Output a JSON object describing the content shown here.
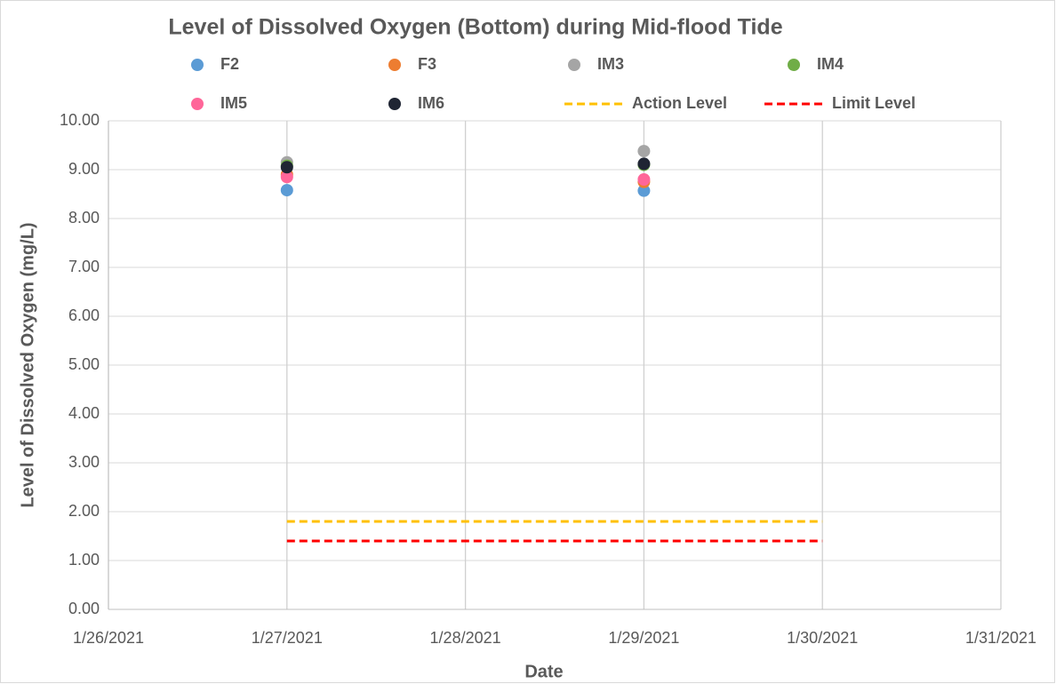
{
  "chart_data": {
    "type": "scatter",
    "title": "Level of Dissolved Oxygen (Bottom) during Mid-flood Tide",
    "x_label": "Date",
    "y_label": "Level of Dissolved Oxygen (mg/L)",
    "xlim": [
      "1/26/2021",
      "1/31/2021"
    ],
    "xticks": [
      "1/26/2021",
      "1/27/2021",
      "1/28/2021",
      "1/29/2021",
      "1/30/2021",
      "1/31/2021"
    ],
    "ylim": [
      0,
      10
    ],
    "yticks": [
      {
        "value": 0,
        "label": "0.00"
      },
      {
        "value": 1,
        "label": "1.00"
      },
      {
        "value": 2,
        "label": "2.00"
      },
      {
        "value": 3,
        "label": "3.00"
      },
      {
        "value": 4,
        "label": "4.00"
      },
      {
        "value": 5,
        "label": "5.00"
      },
      {
        "value": 6,
        "label": "6.00"
      },
      {
        "value": 7,
        "label": "7.00"
      },
      {
        "value": 8,
        "label": "8.00"
      },
      {
        "value": 9,
        "label": "9.00"
      },
      {
        "value": 10,
        "label": "10.00"
      }
    ],
    "grid": true,
    "series": [
      {
        "name": "F2",
        "color": "#5b9bd5",
        "marker": "circle",
        "x": [
          "1/27/2021",
          "1/29/2021"
        ],
        "values": [
          8.58,
          8.57
        ]
      },
      {
        "name": "F3",
        "color": "#ed7d31",
        "marker": "circle",
        "x": [
          "1/27/2021",
          "1/29/2021"
        ],
        "values": [
          8.9,
          8.75
        ]
      },
      {
        "name": "IM3",
        "color": "#a5a5a5",
        "marker": "circle",
        "x": [
          "1/27/2021",
          "1/29/2021"
        ],
        "values": [
          9.15,
          9.38
        ]
      },
      {
        "name": "IM4",
        "color": "#70ad47",
        "marker": "circle",
        "x": [
          "1/27/2021",
          "1/29/2021"
        ],
        "values": [
          9.08,
          9.1
        ]
      },
      {
        "name": "IM5",
        "color": "#ff6699",
        "marker": "circle",
        "x": [
          "1/27/2021",
          "1/29/2021"
        ],
        "values": [
          8.85,
          8.8
        ]
      },
      {
        "name": "IM6",
        "color": "#1f2533",
        "marker": "circle",
        "x": [
          "1/27/2021",
          "1/29/2021"
        ],
        "values": [
          9.05,
          9.12
        ]
      },
      {
        "name": "Action Level",
        "color": "#ffc000",
        "line_style": "dashed",
        "x": [
          "1/27/2021",
          "1/30/2021"
        ],
        "values": [
          1.8,
          1.8
        ]
      },
      {
        "name": "Limit Level",
        "color": "#ff0000",
        "line_style": "dashed",
        "x": [
          "1/27/2021",
          "1/30/2021"
        ],
        "values": [
          1.4,
          1.4
        ]
      }
    ]
  }
}
